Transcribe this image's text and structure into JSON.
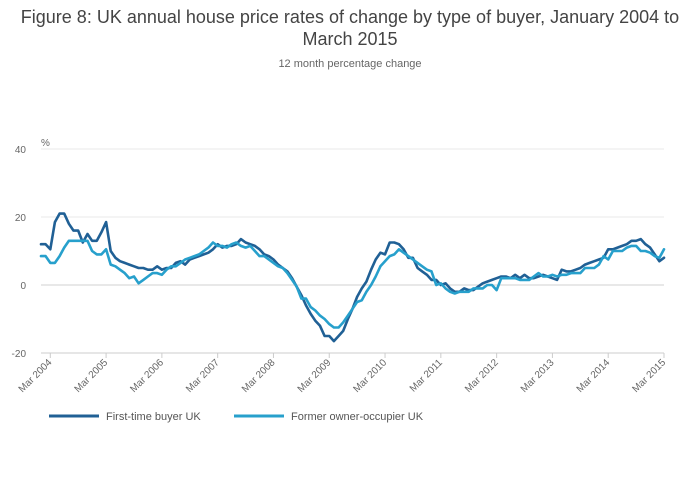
{
  "title": "Figure 8: UK annual house price rates of change by type of buyer, January 2004 to March 2015",
  "subtitle": "12 month percentage change",
  "chart_data": {
    "type": "line",
    "title": "Figure 8: UK annual house price rates of change by type of buyer, January 2004 to March 2015",
    "subtitle": "12 month percentage change",
    "ylabel": "%",
    "ylim": [
      -20,
      40
    ],
    "yticks": [
      -20,
      0,
      20,
      40
    ],
    "grid": true,
    "legend_position": "bottom",
    "xlim": [
      "2004-01",
      "2015-03"
    ],
    "xticks": [
      {
        "date": "2004-03",
        "label": "Mar 2004"
      },
      {
        "date": "2005-03",
        "label": "Mar 2005"
      },
      {
        "date": "2006-03",
        "label": "Mar 2006"
      },
      {
        "date": "2007-03",
        "label": "Mar 2007"
      },
      {
        "date": "2008-03",
        "label": "Mar 2008"
      },
      {
        "date": "2009-03",
        "label": "Mar 2009"
      },
      {
        "date": "2010-03",
        "label": "Mar 2010"
      },
      {
        "date": "2011-03",
        "label": "Mar 2011"
      },
      {
        "date": "2012-03",
        "label": "Mar 2012"
      },
      {
        "date": "2013-03",
        "label": "Mar 2013"
      },
      {
        "date": "2014-03",
        "label": "Mar 2014"
      },
      {
        "date": "2015-03",
        "label": "Mar 2015"
      }
    ],
    "series": [
      {
        "name": "First-time buyer UK",
        "color": "#206095",
        "points": [
          [
            "2004-01",
            12
          ],
          [
            "2004-02",
            12
          ],
          [
            "2004-03",
            10.5
          ],
          [
            "2004-04",
            18.5
          ],
          [
            "2004-05",
            21
          ],
          [
            "2004-06",
            21
          ],
          [
            "2004-07",
            18
          ],
          [
            "2004-08",
            16
          ],
          [
            "2004-09",
            16
          ],
          [
            "2004-10",
            12.5
          ],
          [
            "2004-11",
            15
          ],
          [
            "2004-12",
            13
          ],
          [
            "2005-01",
            13
          ],
          [
            "2005-02",
            15.5
          ],
          [
            "2005-03",
            18.5
          ],
          [
            "2005-04",
            10
          ],
          [
            "2005-05",
            8
          ],
          [
            "2005-06",
            7
          ],
          [
            "2005-07",
            6.5
          ],
          [
            "2005-08",
            6
          ],
          [
            "2005-09",
            5.5
          ],
          [
            "2005-10",
            5
          ],
          [
            "2005-11",
            5
          ],
          [
            "2005-12",
            4.5
          ],
          [
            "2006-01",
            4.5
          ],
          [
            "2006-02",
            5.5
          ],
          [
            "2006-03",
            4.5
          ],
          [
            "2006-04",
            5
          ],
          [
            "2006-05",
            5
          ],
          [
            "2006-06",
            6.5
          ],
          [
            "2006-07",
            7
          ],
          [
            "2006-08",
            6
          ],
          [
            "2006-09",
            7.5
          ],
          [
            "2006-10",
            8
          ],
          [
            "2006-11",
            8.5
          ],
          [
            "2006-12",
            9
          ],
          [
            "2007-01",
            9.5
          ],
          [
            "2007-02",
            10.5
          ],
          [
            "2007-03",
            12
          ],
          [
            "2007-04",
            11
          ],
          [
            "2007-05",
            11.5
          ],
          [
            "2007-06",
            11.5
          ],
          [
            "2007-07",
            12
          ],
          [
            "2007-08",
            13.5
          ],
          [
            "2007-09",
            12.5
          ],
          [
            "2007-10",
            12
          ],
          [
            "2007-11",
            11.5
          ],
          [
            "2007-12",
            10.5
          ],
          [
            "2008-01",
            9
          ],
          [
            "2008-02",
            8.5
          ],
          [
            "2008-03",
            7.5
          ],
          [
            "2008-04",
            6
          ],
          [
            "2008-05",
            5
          ],
          [
            "2008-06",
            4
          ],
          [
            "2008-07",
            2
          ],
          [
            "2008-08",
            -0.5
          ],
          [
            "2008-09",
            -3
          ],
          [
            "2008-10",
            -6
          ],
          [
            "2008-11",
            -8.5
          ],
          [
            "2008-12",
            -10.5
          ],
          [
            "2009-01",
            -12
          ],
          [
            "2009-02",
            -15
          ],
          [
            "2009-03",
            -15
          ],
          [
            "2009-04",
            -16.5
          ],
          [
            "2009-05",
            -15
          ],
          [
            "2009-06",
            -13.5
          ],
          [
            "2009-07",
            -10
          ],
          [
            "2009-08",
            -7
          ],
          [
            "2009-09",
            -3.5
          ],
          [
            "2009-10",
            -1
          ],
          [
            "2009-11",
            1
          ],
          [
            "2009-12",
            4.5
          ],
          [
            "2010-01",
            7.5
          ],
          [
            "2010-02",
            9.5
          ],
          [
            "2010-03",
            9
          ],
          [
            "2010-04",
            12.5
          ],
          [
            "2010-05",
            12.5
          ],
          [
            "2010-06",
            12
          ],
          [
            "2010-07",
            10.5
          ],
          [
            "2010-08",
            8
          ],
          [
            "2010-09",
            8
          ],
          [
            "2010-10",
            5
          ],
          [
            "2010-11",
            4
          ],
          [
            "2010-12",
            3
          ],
          [
            "2011-01",
            1.5
          ],
          [
            "2011-02",
            1.5
          ],
          [
            "2011-03",
            0
          ],
          [
            "2011-04",
            0.5
          ],
          [
            "2011-05",
            -1
          ],
          [
            "2011-06",
            -2
          ],
          [
            "2011-07",
            -2
          ],
          [
            "2011-08",
            -1
          ],
          [
            "2011-09",
            -1.5
          ],
          [
            "2011-10",
            -1.5
          ],
          [
            "2011-11",
            -0.5
          ],
          [
            "2011-12",
            0.5
          ],
          [
            "2012-01",
            1
          ],
          [
            "2012-02",
            1.5
          ],
          [
            "2012-03",
            2
          ],
          [
            "2012-04",
            2.5
          ],
          [
            "2012-05",
            2.5
          ],
          [
            "2012-06",
            2
          ],
          [
            "2012-07",
            3
          ],
          [
            "2012-08",
            2
          ],
          [
            "2012-09",
            3
          ],
          [
            "2012-10",
            2
          ],
          [
            "2012-11",
            2
          ],
          [
            "2012-12",
            2.5
          ],
          [
            "2013-01",
            3
          ],
          [
            "2013-02",
            2.5
          ],
          [
            "2013-03",
            2
          ],
          [
            "2013-04",
            1.5
          ],
          [
            "2013-05",
            4.5
          ],
          [
            "2013-06",
            4
          ],
          [
            "2013-07",
            4
          ],
          [
            "2013-08",
            4.5
          ],
          [
            "2013-09",
            5
          ],
          [
            "2013-10",
            6
          ],
          [
            "2013-11",
            6.5
          ],
          [
            "2013-12",
            7
          ],
          [
            "2014-01",
            7.5
          ],
          [
            "2014-02",
            8
          ],
          [
            "2014-03",
            10.5
          ],
          [
            "2014-04",
            10.5
          ],
          [
            "2014-05",
            11
          ],
          [
            "2014-06",
            11.5
          ],
          [
            "2014-07",
            12
          ],
          [
            "2014-08",
            13
          ],
          [
            "2014-09",
            13
          ],
          [
            "2014-10",
            13.5
          ],
          [
            "2014-11",
            12
          ],
          [
            "2014-12",
            11
          ],
          [
            "2015-01",
            9
          ],
          [
            "2015-02",
            7
          ],
          [
            "2015-03",
            8
          ]
        ]
      },
      {
        "name": "Former owner-occupier UK",
        "color": "#27a0cc",
        "points": [
          [
            "2004-01",
            8.5
          ],
          [
            "2004-02",
            8.5
          ],
          [
            "2004-03",
            6.5
          ],
          [
            "2004-04",
            6.5
          ],
          [
            "2004-05",
            8.5
          ],
          [
            "2004-06",
            11
          ],
          [
            "2004-07",
            13
          ],
          [
            "2004-08",
            13
          ],
          [
            "2004-09",
            13
          ],
          [
            "2004-10",
            13
          ],
          [
            "2004-11",
            13
          ],
          [
            "2004-12",
            10
          ],
          [
            "2005-01",
            9
          ],
          [
            "2005-02",
            9
          ],
          [
            "2005-03",
            10.5
          ],
          [
            "2005-04",
            6
          ],
          [
            "2005-05",
            5.5
          ],
          [
            "2005-06",
            4.5
          ],
          [
            "2005-07",
            3.5
          ],
          [
            "2005-08",
            2
          ],
          [
            "2005-09",
            2.5
          ],
          [
            "2005-10",
            0.5
          ],
          [
            "2005-11",
            1.5
          ],
          [
            "2005-12",
            2.5
          ],
          [
            "2006-01",
            3.5
          ],
          [
            "2006-02",
            3.5
          ],
          [
            "2006-03",
            3
          ],
          [
            "2006-04",
            4.5
          ],
          [
            "2006-05",
            5.5
          ],
          [
            "2006-06",
            5.5
          ],
          [
            "2006-07",
            6.5
          ],
          [
            "2006-08",
            7.5
          ],
          [
            "2006-09",
            8
          ],
          [
            "2006-10",
            8.5
          ],
          [
            "2006-11",
            9
          ],
          [
            "2006-12",
            10
          ],
          [
            "2007-01",
            11
          ],
          [
            "2007-02",
            12.5
          ],
          [
            "2007-03",
            11.5
          ],
          [
            "2007-04",
            11.5
          ],
          [
            "2007-05",
            11
          ],
          [
            "2007-06",
            12
          ],
          [
            "2007-07",
            12.5
          ],
          [
            "2007-08",
            11.5
          ],
          [
            "2007-09",
            11
          ],
          [
            "2007-10",
            11.5
          ],
          [
            "2007-11",
            10
          ],
          [
            "2007-12",
            8.5
          ],
          [
            "2008-01",
            8.5
          ],
          [
            "2008-02",
            7.5
          ],
          [
            "2008-03",
            6.5
          ],
          [
            "2008-04",
            5.5
          ],
          [
            "2008-05",
            5
          ],
          [
            "2008-06",
            3.5
          ],
          [
            "2008-07",
            1.5
          ],
          [
            "2008-08",
            -0.5
          ],
          [
            "2008-09",
            -4
          ],
          [
            "2008-10",
            -4
          ],
          [
            "2008-11",
            -6.5
          ],
          [
            "2008-12",
            -7.5
          ],
          [
            "2009-01",
            -9
          ],
          [
            "2009-02",
            -10
          ],
          [
            "2009-03",
            -11.5
          ],
          [
            "2009-04",
            -12.5
          ],
          [
            "2009-05",
            -12.5
          ],
          [
            "2009-06",
            -11
          ],
          [
            "2009-07",
            -9
          ],
          [
            "2009-08",
            -7
          ],
          [
            "2009-09",
            -5
          ],
          [
            "2009-10",
            -4.5
          ],
          [
            "2009-11",
            -2
          ],
          [
            "2009-12",
            0
          ],
          [
            "2010-01",
            2.5
          ],
          [
            "2010-02",
            5.5
          ],
          [
            "2010-03",
            7
          ],
          [
            "2010-04",
            8.5
          ],
          [
            "2010-05",
            9
          ],
          [
            "2010-06",
            10.5
          ],
          [
            "2010-07",
            9.5
          ],
          [
            "2010-08",
            8.5
          ],
          [
            "2010-09",
            7.5
          ],
          [
            "2010-10",
            6.5
          ],
          [
            "2010-11",
            5.5
          ],
          [
            "2010-12",
            4.5
          ],
          [
            "2011-01",
            4
          ],
          [
            "2011-02",
            0
          ],
          [
            "2011-03",
            0.5
          ],
          [
            "2011-04",
            -1
          ],
          [
            "2011-05",
            -2
          ],
          [
            "2011-06",
            -2.5
          ],
          [
            "2011-07",
            -2
          ],
          [
            "2011-08",
            -2
          ],
          [
            "2011-09",
            -2
          ],
          [
            "2011-10",
            -1
          ],
          [
            "2011-11",
            -1
          ],
          [
            "2011-12",
            -1
          ],
          [
            "2012-01",
            0
          ],
          [
            "2012-02",
            0
          ],
          [
            "2012-03",
            -1.5
          ],
          [
            "2012-04",
            2
          ],
          [
            "2012-05",
            2
          ],
          [
            "2012-06",
            2
          ],
          [
            "2012-07",
            2
          ],
          [
            "2012-08",
            1.5
          ],
          [
            "2012-09",
            1.5
          ],
          [
            "2012-10",
            1.5
          ],
          [
            "2012-11",
            2.5
          ],
          [
            "2012-12",
            3.5
          ],
          [
            "2013-01",
            2.5
          ],
          [
            "2013-02",
            2.5
          ],
          [
            "2013-03",
            3
          ],
          [
            "2013-04",
            2.5
          ],
          [
            "2013-05",
            3
          ],
          [
            "2013-06",
            3
          ],
          [
            "2013-07",
            3.5
          ],
          [
            "2013-08",
            3.5
          ],
          [
            "2013-09",
            3.5
          ],
          [
            "2013-10",
            5
          ],
          [
            "2013-11",
            5
          ],
          [
            "2013-12",
            5
          ],
          [
            "2014-01",
            6
          ],
          [
            "2014-02",
            8.5
          ],
          [
            "2014-03",
            7.5
          ],
          [
            "2014-04",
            10
          ],
          [
            "2014-05",
            10
          ],
          [
            "2014-06",
            10
          ],
          [
            "2014-07",
            11
          ],
          [
            "2014-08",
            11.5
          ],
          [
            "2014-09",
            11.5
          ],
          [
            "2014-10",
            10
          ],
          [
            "2014-11",
            10
          ],
          [
            "2014-12",
            9.5
          ],
          [
            "2015-01",
            8.5
          ],
          [
            "2015-02",
            8
          ],
          [
            "2015-03",
            10.5
          ]
        ]
      }
    ]
  }
}
